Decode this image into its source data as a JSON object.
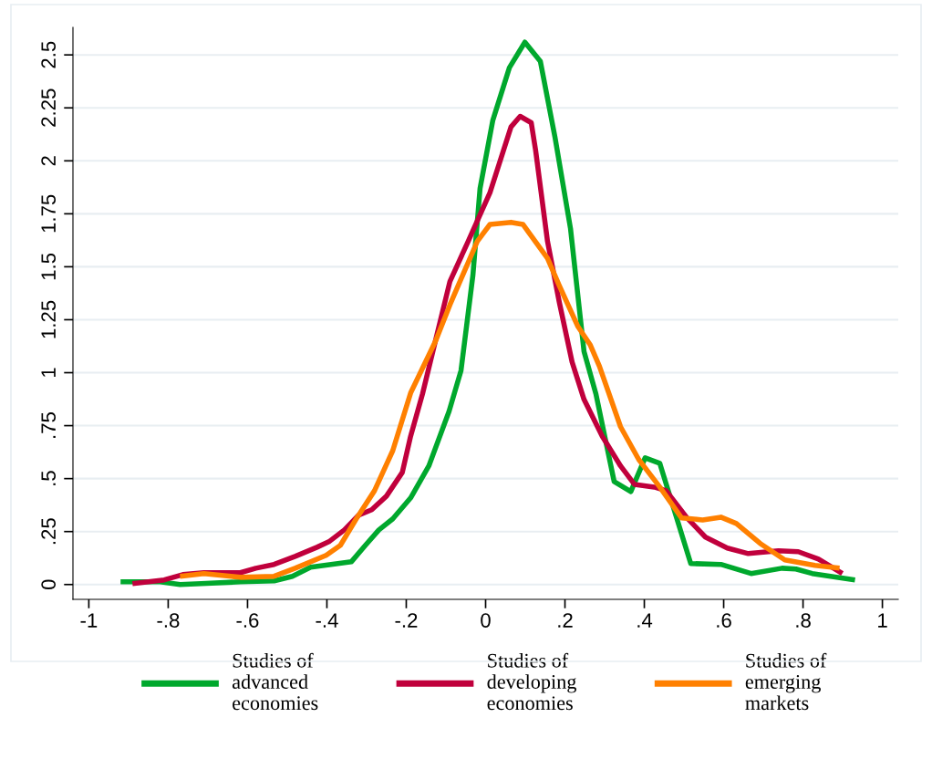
{
  "chart_data": {
    "type": "line",
    "xlim": [
      -1.04,
      1.04
    ],
    "ylim": [
      -0.07,
      2.63
    ],
    "xticks": [
      {
        "value": -1,
        "label": "-1"
      },
      {
        "value": -0.8,
        "label": "-.8"
      },
      {
        "value": -0.6,
        "label": "-.6"
      },
      {
        "value": -0.4,
        "label": "-.4"
      },
      {
        "value": -0.2,
        "label": "-.2"
      },
      0,
      {
        "value": 0.2,
        "label": ".2"
      },
      {
        "value": 0.4,
        "label": ".4"
      },
      {
        "value": 0.6,
        "label": ".6"
      },
      {
        "value": 0.8,
        "label": ".8"
      },
      1
    ],
    "yticks": [
      0,
      {
        "value": 0.25,
        "label": ".25"
      },
      {
        "value": 0.5,
        "label": ".5"
      },
      {
        "value": 0.75,
        "label": ".75"
      },
      1,
      1.25,
      1.5,
      1.75,
      2,
      2.25,
      2.5
    ],
    "grid": "y",
    "legend": "bottom",
    "marker": "none",
    "line_style": "solid",
    "series": [
      {
        "name": "Studies of advanced economies",
        "color": "#00a82d",
        "x": [
          -0.92,
          -0.82,
          -0.77,
          -0.717,
          -0.618,
          -0.533,
          -0.487,
          -0.441,
          -0.338,
          -0.303,
          -0.269,
          -0.234,
          -0.189,
          -0.143,
          -0.092,
          -0.062,
          -0.032,
          -0.014,
          0.018,
          0.06,
          0.099,
          0.138,
          0.175,
          0.214,
          0.248,
          0.278,
          0.324,
          0.366,
          0.402,
          0.439,
          0.517,
          0.593,
          0.669,
          0.747,
          0.782,
          0.823,
          0.931
        ],
        "values": [
          0.013,
          0.013,
          0,
          0.004,
          0.013,
          0.017,
          0.039,
          0.082,
          0.108,
          0.185,
          0.258,
          0.31,
          0.409,
          0.56,
          0.818,
          1.01,
          1.46,
          1.87,
          2.19,
          2.44,
          2.56,
          2.47,
          2.11,
          1.68,
          1.1,
          0.9,
          0.486,
          0.439,
          0.598,
          0.572,
          0.099,
          0.095,
          0.052,
          0.077,
          0.073,
          0.052,
          0.022
        ]
      },
      {
        "name": "Studies of developing economies",
        "color": "#c0003c",
        "x": [
          -0.89,
          -0.81,
          -0.763,
          -0.71,
          -0.618,
          -0.579,
          -0.533,
          -0.48,
          -0.425,
          -0.395,
          -0.356,
          -0.32,
          -0.287,
          -0.25,
          -0.21,
          -0.189,
          -0.159,
          -0.09,
          -0.044,
          0.011,
          0.064,
          0.087,
          0.115,
          0.126,
          0.156,
          0.186,
          0.218,
          0.248,
          0.294,
          0.34,
          0.375,
          0.425,
          0.455,
          0.508,
          0.554,
          0.609,
          0.662,
          0.738,
          0.788,
          0.839,
          0.899
        ],
        "values": [
          0.004,
          0.022,
          0.047,
          0.056,
          0.056,
          0.077,
          0.095,
          0.133,
          0.176,
          0.202,
          0.258,
          0.327,
          0.353,
          0.417,
          0.529,
          0.7,
          0.9,
          1.43,
          1.62,
          1.85,
          2.16,
          2.21,
          2.18,
          2.05,
          1.62,
          1.33,
          1.05,
          0.874,
          0.7,
          0.56,
          0.473,
          0.46,
          0.443,
          0.314,
          0.224,
          0.172,
          0.146,
          0.159,
          0.155,
          0.12,
          0.052
        ]
      },
      {
        "name": "Studies of emerging markets",
        "color": "#ff8000",
        "x": [
          -0.77,
          -0.71,
          -0.618,
          -0.533,
          -0.48,
          -0.402,
          -0.366,
          -0.326,
          -0.28,
          -0.234,
          -0.189,
          -0.126,
          -0.09,
          -0.021,
          0.011,
          0.064,
          0.094,
          0.156,
          0.186,
          0.232,
          0.264,
          0.287,
          0.34,
          0.386,
          0.439,
          0.494,
          0.547,
          0.593,
          0.632,
          0.692,
          0.754,
          0.83,
          0.892
        ],
        "values": [
          0.039,
          0.052,
          0.034,
          0.039,
          0.077,
          0.138,
          0.185,
          0.31,
          0.443,
          0.632,
          0.904,
          1.15,
          1.32,
          1.62,
          1.7,
          1.71,
          1.7,
          1.54,
          1.41,
          1.22,
          1.13,
          1.03,
          0.745,
          0.59,
          0.46,
          0.314,
          0.305,
          0.318,
          0.288,
          0.194,
          0.116,
          0.09,
          0.077
        ]
      }
    ]
  }
}
